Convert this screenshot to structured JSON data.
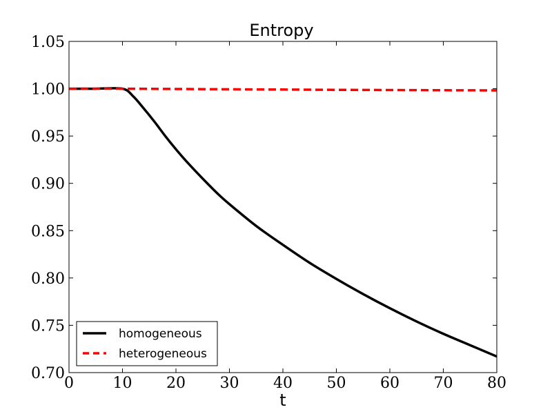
{
  "chart_data": {
    "type": "line",
    "title": "Entropy",
    "xlabel": "t",
    "ylabel": "",
    "xlim": [
      0,
      80
    ],
    "ylim": [
      0.7,
      1.05
    ],
    "xticks": [
      0,
      10,
      20,
      30,
      40,
      50,
      60,
      70,
      80
    ],
    "xtick_labels": [
      "0",
      "10",
      "20",
      "30",
      "40",
      "50",
      "60",
      "70",
      "80"
    ],
    "yticks": [
      0.7,
      0.75,
      0.8,
      0.85,
      0.9,
      0.95,
      1.0,
      1.05
    ],
    "ytick_labels": [
      "0.70",
      "0.75",
      "0.80",
      "0.85",
      "0.90",
      "0.95",
      "1.00",
      "1.05"
    ],
    "grid": false,
    "legend_position": "lower-left",
    "series": [
      {
        "name": "homogeneous",
        "color": "#000000",
        "style": "solid",
        "x": [
          0,
          5,
          10,
          12,
          14,
          16,
          18,
          20,
          22,
          25,
          28,
          30,
          35,
          40,
          45,
          50,
          55,
          60,
          65,
          70,
          75,
          80
        ],
        "y": [
          1.0,
          1.0,
          1.0,
          0.992,
          0.979,
          0.965,
          0.95,
          0.936,
          0.923,
          0.905,
          0.888,
          0.878,
          0.855,
          0.835,
          0.816,
          0.799,
          0.783,
          0.768,
          0.754,
          0.741,
          0.729,
          0.717
        ]
      },
      {
        "name": "heterogeneous",
        "color": "#ff0000",
        "style": "dashed",
        "x": [
          0,
          10,
          20,
          30,
          40,
          50,
          60,
          70,
          80
        ],
        "y": [
          1.0,
          1.0,
          0.9997,
          0.9994,
          0.9991,
          0.9988,
          0.9986,
          0.9984,
          0.9982
        ]
      }
    ]
  }
}
